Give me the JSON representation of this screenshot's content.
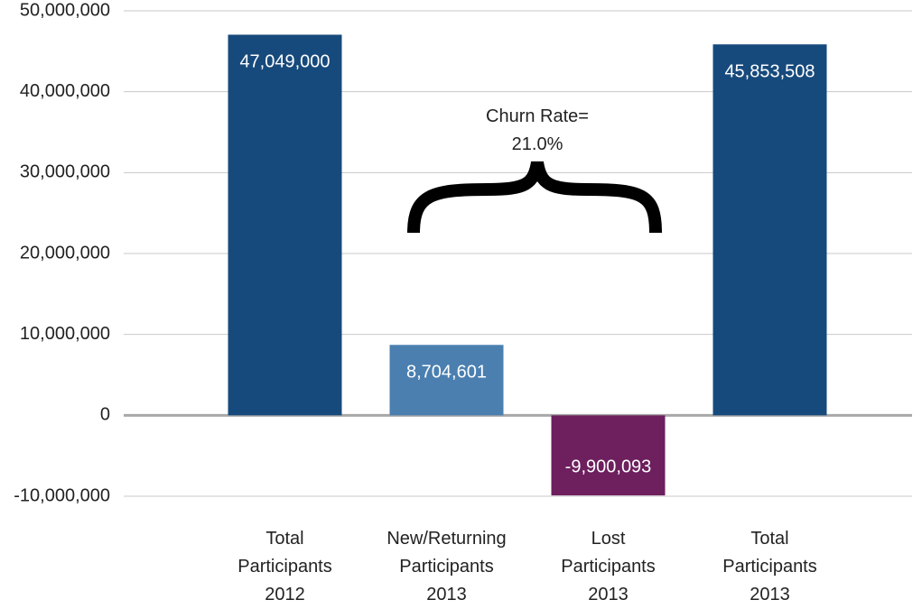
{
  "chart_data": {
    "type": "bar",
    "categories": [
      "Total\nParticipants\n2012",
      "New/Returning\nParticipants\n2013",
      "Lost\nParticipants\n2013",
      "Total\nParticipants\n2013"
    ],
    "values": [
      47049000,
      8704601,
      -9900093,
      45853508
    ],
    "value_labels": [
      "47,049,000",
      "8,704,601",
      "-9,900,093",
      "45,853,508"
    ],
    "colors": [
      "#174a7c",
      "#4a7fb0",
      "#6d1f5e",
      "#174a7c"
    ],
    "ylim": [
      -10000000,
      50000000
    ],
    "yticks": [
      {
        "value": -10000000,
        "label": "-10,000,000"
      },
      0,
      {
        "value": 10000000,
        "label": "10,000,000"
      },
      {
        "value": 20000000,
        "label": "20,000,000"
      },
      {
        "value": 30000000,
        "label": "30,000,000"
      },
      {
        "value": 40000000,
        "label": "40,000,000"
      },
      {
        "value": 50000000,
        "label": "50,000,000"
      }
    ],
    "grid": true,
    "annotation": "Churn Rate=\n21.0%"
  }
}
